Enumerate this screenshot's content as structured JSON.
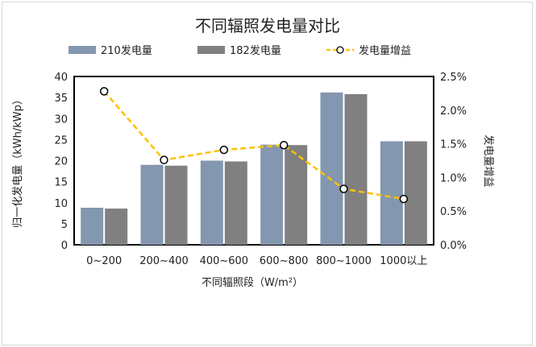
{
  "chart_data": {
    "type": "bar",
    "title": "不同辐照发电量对比",
    "xlabel": "不同辐照段（W/m²）",
    "ylabel": "归一化发电量（kWh/kWp）",
    "y2label": "发电量增益",
    "categories": [
      "0~200",
      "200~400",
      "400~600",
      "600~800",
      "800~1000",
      "1000以上"
    ],
    "series": [
      {
        "name": "210发电量",
        "type": "bar",
        "axis": "left",
        "color": "#8497b0",
        "values": [
          8.8,
          19.0,
          20.0,
          23.8,
          36.2,
          24.6
        ]
      },
      {
        "name": "182发电量",
        "type": "bar",
        "axis": "left",
        "color": "#808080",
        "values": [
          8.6,
          18.8,
          19.8,
          23.7,
          35.8,
          24.6
        ]
      },
      {
        "name": "发电量增益",
        "type": "line",
        "axis": "right",
        "color": "#ffc000",
        "values": [
          2.28,
          1.26,
          1.41,
          1.48,
          0.83,
          0.68
        ]
      }
    ],
    "ylim": [
      0,
      40
    ],
    "yticks": [
      "0",
      "5",
      "10",
      "15",
      "20",
      "25",
      "30",
      "35",
      "40"
    ],
    "y2lim": [
      0,
      2.5
    ],
    "y2ticks": [
      "0.0%",
      "0.5%",
      "1.0%",
      "1.5%",
      "2.0%",
      "2.5%"
    ],
    "grid": false,
    "legend": "top"
  }
}
